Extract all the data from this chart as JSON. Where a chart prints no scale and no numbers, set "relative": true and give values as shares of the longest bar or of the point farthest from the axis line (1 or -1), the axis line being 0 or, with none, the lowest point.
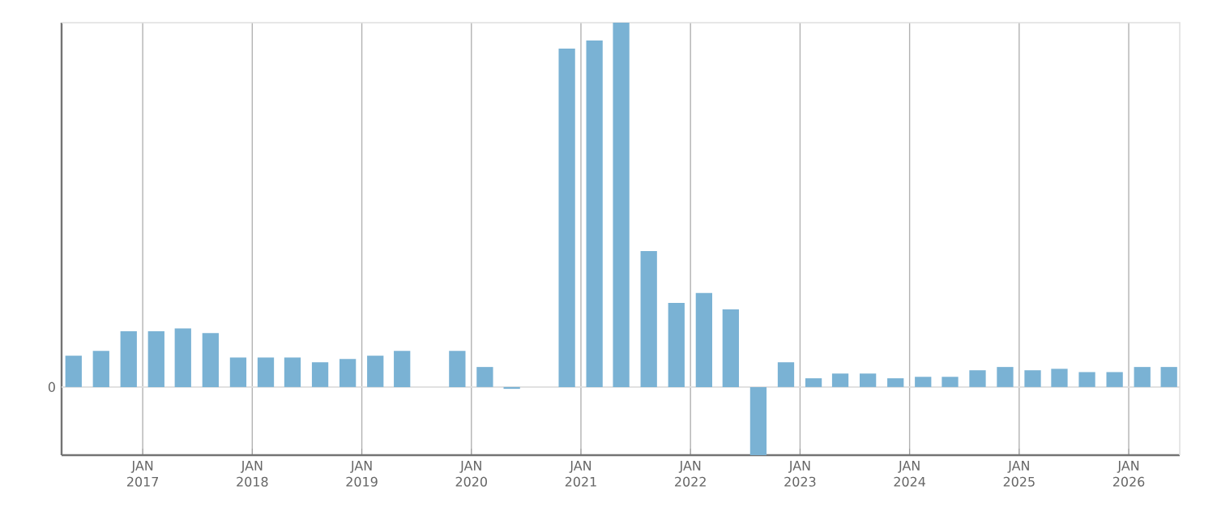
{
  "chart_data": {
    "type": "bar",
    "relative": true,
    "color": "#7ab2d4",
    "grid": "x",
    "x": [
      "2016-05-15",
      "2016-08-15",
      "2016-11-15",
      "2017-02-15",
      "2017-05-15",
      "2017-08-15",
      "2017-11-15",
      "2018-02-15",
      "2018-05-15",
      "2018-08-15",
      "2018-11-15",
      "2019-02-15",
      "2019-05-15",
      "2019-08-15",
      "2019-11-15",
      "2020-02-15",
      "2020-05-15",
      "2020-08-15",
      "2020-11-15",
      "2021-02-15",
      "2021-05-15",
      "2021-08-15",
      "2021-11-15",
      "2022-02-15",
      "2022-05-15",
      "2022-08-15",
      "2022-11-15",
      "2023-02-15",
      "2023-05-15",
      "2023-08-15",
      "2023-11-15",
      "2024-02-15",
      "2024-05-15",
      "2024-08-15",
      "2024-11-15",
      "2025-02-15",
      "2025-05-15",
      "2025-08-15",
      "2025-11-15",
      "2026-02-15",
      "2026-05-15"
    ],
    "values": [
      0.086,
      0.099,
      0.153,
      0.153,
      0.161,
      0.148,
      0.081,
      0.081,
      0.081,
      0.068,
      0.077,
      0.086,
      0.099,
      null,
      0.099,
      0.055,
      -0.005,
      null,
      0.929,
      0.951,
      1,
      0.373,
      0.231,
      0.258,
      0.213,
      -0.187,
      0.068,
      0.024,
      0.037,
      0.037,
      0.024,
      0.028,
      0.028,
      0.046,
      0.055,
      0.046,
      0.05,
      0.041,
      0.041,
      0.055,
      0.055
    ],
    "xlim": [
      "2016-04-05",
      "2026-06-20"
    ],
    "xticks": [
      {
        "value": "2017-01-01",
        "label": "JAN 2017"
      },
      {
        "value": "2018-01-01",
        "label": "JAN 2018"
      },
      {
        "value": "2019-01-01",
        "label": "JAN 2019"
      },
      {
        "value": "2020-01-01",
        "label": "JAN 2020"
      },
      {
        "value": "2021-01-01",
        "label": "JAN 2021"
      },
      {
        "value": "2022-01-01",
        "label": "JAN 2022"
      },
      {
        "value": "2023-01-01",
        "label": "JAN 2023"
      },
      {
        "value": "2024-01-01",
        "label": "JAN 2024"
      },
      {
        "value": "2025-01-01",
        "label": "JAN 2025"
      },
      {
        "value": "2026-01-01",
        "label": "JAN 2026"
      }
    ],
    "ref_lines": [
      {
        "axis": "y",
        "value": 0,
        "label": "0",
        "color": "#dddddd"
      }
    ]
  }
}
